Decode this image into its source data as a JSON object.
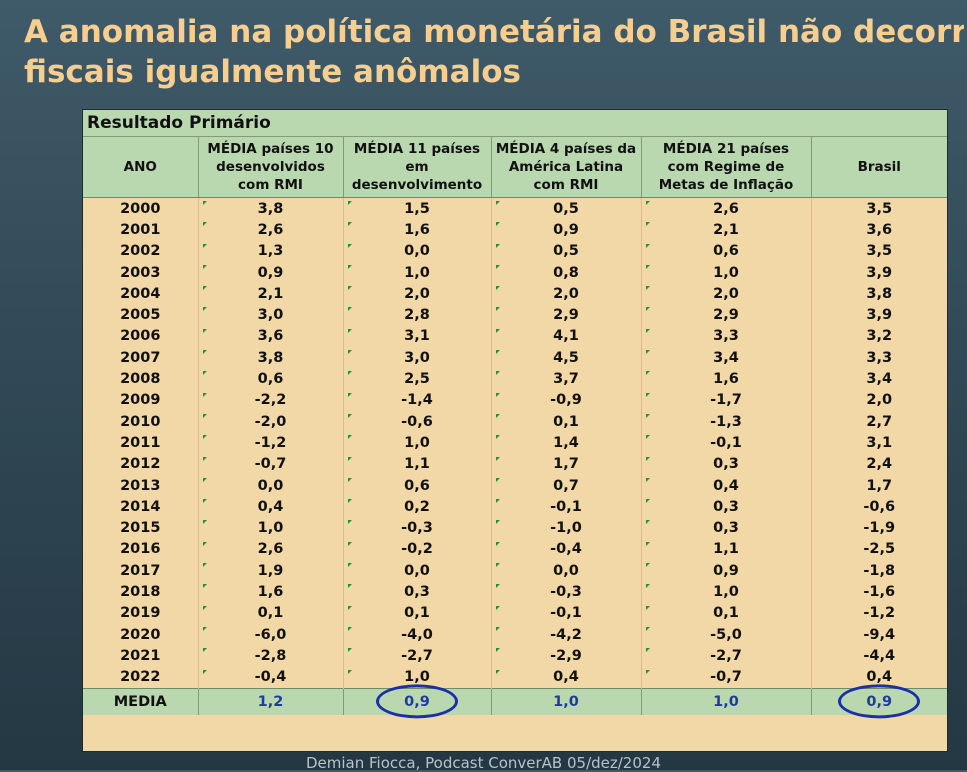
{
  "title_line1": "A anomalia na política monetária do Brasil não decorre de resultados",
  "title_line2": "fiscais igualmente anômalos",
  "table": {
    "caption": "Resultado Primário",
    "headers": [
      [
        "ANO"
      ],
      [
        "MÉDIA países 10",
        "desenvolvidos",
        "com RMI"
      ],
      [
        "MÉDIA 11 países",
        "em",
        "desenvolvimento"
      ],
      [
        "MÉDIA 4 países da",
        "América Latina",
        "com RMI"
      ],
      [
        "MÉDIA 21 países",
        "com Regime de",
        "Metas de Inflação"
      ],
      [
        "Brasil"
      ]
    ],
    "rows": [
      [
        "2000",
        "3,8",
        "1,5",
        "0,5",
        "2,6",
        "3,5"
      ],
      [
        "2001",
        "2,6",
        "1,6",
        "0,9",
        "2,1",
        "3,6"
      ],
      [
        "2002",
        "1,3",
        "0,0",
        "0,5",
        "0,6",
        "3,5"
      ],
      [
        "2003",
        "0,9",
        "1,0",
        "0,8",
        "1,0",
        "3,9"
      ],
      [
        "2004",
        "2,1",
        "2,0",
        "2,0",
        "2,0",
        "3,8"
      ],
      [
        "2005",
        "3,0",
        "2,8",
        "2,9",
        "2,9",
        "3,9"
      ],
      [
        "2006",
        "3,6",
        "3,1",
        "4,1",
        "3,3",
        "3,2"
      ],
      [
        "2007",
        "3,8",
        "3,0",
        "4,5",
        "3,4",
        "3,3"
      ],
      [
        "2008",
        "0,6",
        "2,5",
        "3,7",
        "1,6",
        "3,4"
      ],
      [
        "2009",
        "-2,2",
        "-1,4",
        "-0,9",
        "-1,7",
        "2,0"
      ],
      [
        "2010",
        "-2,0",
        "-0,6",
        "0,1",
        "-1,3",
        "2,7"
      ],
      [
        "2011",
        "-1,2",
        "1,0",
        "1,4",
        "-0,1",
        "3,1"
      ],
      [
        "2012",
        "-0,7",
        "1,1",
        "1,7",
        "0,3",
        "2,4"
      ],
      [
        "2013",
        "0,0",
        "0,6",
        "0,7",
        "0,4",
        "1,7"
      ],
      [
        "2014",
        "0,4",
        "0,2",
        "-0,1",
        "0,3",
        "-0,6"
      ],
      [
        "2015",
        "1,0",
        "-0,3",
        "-1,0",
        "0,3",
        "-1,9"
      ],
      [
        "2016",
        "2,6",
        "-0,2",
        "-0,4",
        "1,1",
        "-2,5"
      ],
      [
        "2017",
        "1,9",
        "0,0",
        "0,0",
        "0,9",
        "-1,8"
      ],
      [
        "2018",
        "1,6",
        "0,3",
        "-0,3",
        "1,0",
        "-1,6"
      ],
      [
        "2019",
        "0,1",
        "0,1",
        "-0,1",
        "0,1",
        "-1,2"
      ],
      [
        "2020",
        "-6,0",
        "-4,0",
        "-4,2",
        "-5,0",
        "-9,4"
      ],
      [
        "2021",
        "-2,8",
        "-2,7",
        "-2,9",
        "-2,7",
        "-4,4"
      ],
      [
        "2022",
        "-0,4",
        "1,0",
        "0,4",
        "-0,7",
        "0,4"
      ]
    ],
    "media": [
      "MEDIA",
      "1,2",
      "0,9",
      "1,0",
      "1,0",
      "0,9"
    ],
    "highlight_color": "#1a2fa8"
  },
  "footer": "Demian Fiocca, Podcast ConverAB 05/dez/2024"
}
